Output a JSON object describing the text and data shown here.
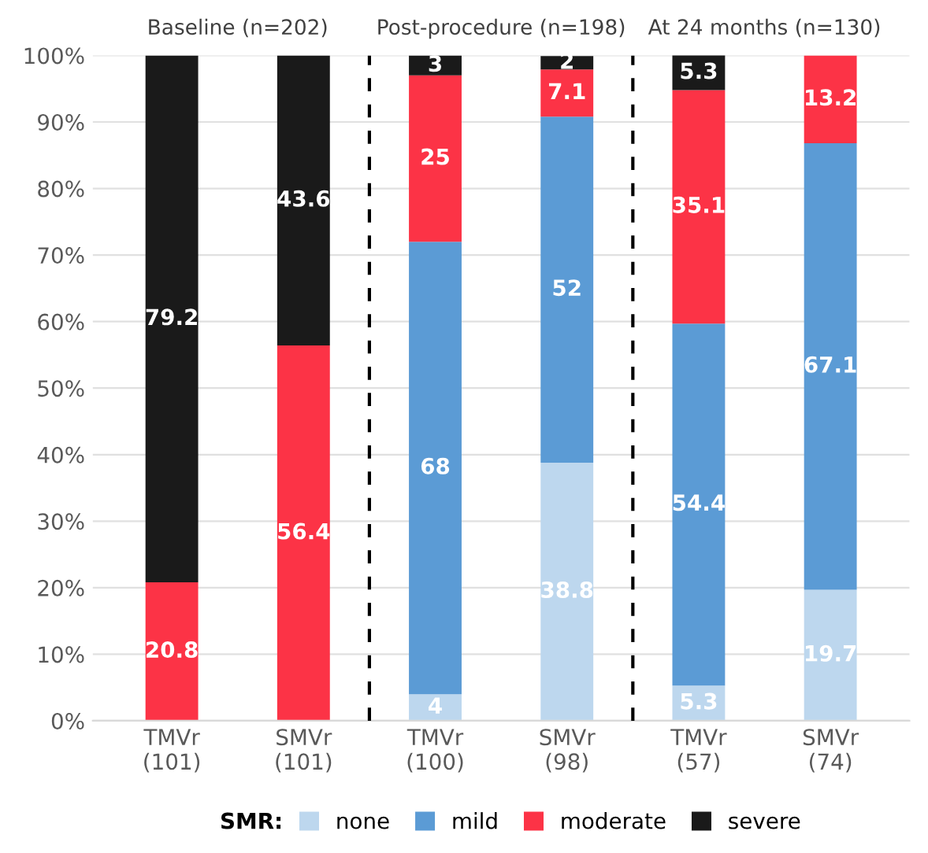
{
  "chart_data": {
    "type": "bar",
    "stacked": true,
    "categories": [
      "TMVr\n(101)",
      "SMVr\n(101)",
      "TMVr\n(100)",
      "SMVr\n(98)",
      "TMVr\n(57)",
      "SMVr\n(74)"
    ],
    "series": [
      {
        "name": "none",
        "color": "#bdd7ee",
        "values": [
          0,
          0,
          4,
          38.8,
          5.3,
          19.7
        ],
        "value_labels": [
          null,
          null,
          "4",
          "38.8",
          "5.3",
          "19.7"
        ]
      },
      {
        "name": "mild",
        "color": "#5b9bd5",
        "values": [
          0,
          0,
          68,
          52,
          54.4,
          67.1
        ],
        "value_labels": [
          null,
          null,
          "68",
          "52",
          "54.4",
          "67.1"
        ]
      },
      {
        "name": "moderate",
        "color": "#fc3346",
        "values": [
          20.8,
          56.4,
          25,
          7.1,
          35.1,
          13.2
        ],
        "value_labels": [
          "20.8",
          "56.4",
          "25",
          "7.1",
          "35.1",
          "13.2"
        ]
      },
      {
        "name": "severe",
        "color": "#1a1a1a",
        "values": [
          79.2,
          43.6,
          3,
          2,
          5.3,
          0
        ],
        "value_labels": [
          "79.2",
          "43.6",
          "3",
          "2",
          "5.3",
          null
        ]
      }
    ],
    "ylim": [
      0,
      100
    ],
    "yticks": [
      {
        "value": 0,
        "label": "0%"
      },
      {
        "value": 10,
        "label": "10%"
      },
      {
        "value": 20,
        "label": "20%"
      },
      {
        "value": 30,
        "label": "30%"
      },
      {
        "value": 40,
        "label": "40%"
      },
      {
        "value": 50,
        "label": "50%"
      },
      {
        "value": 60,
        "label": "60%"
      },
      {
        "value": 70,
        "label": "70%"
      },
      {
        "value": 80,
        "label": "80%"
      },
      {
        "value": 90,
        "label": "90%"
      },
      {
        "value": 100,
        "label": "100%"
      }
    ],
    "grid": "y",
    "legend": "bottom",
    "legend_title": "SMR:",
    "annotations": [
      "Baseline (n=202)",
      "Post-procedure (n=198)",
      "At 24 months (n=130)"
    ]
  }
}
